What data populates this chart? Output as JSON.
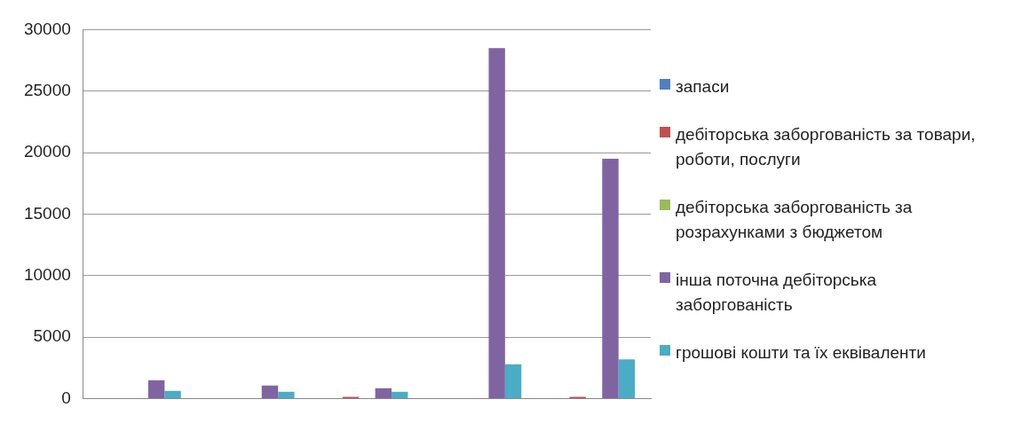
{
  "chart_data": {
    "type": "bar",
    "categories": [
      null,
      null,
      null,
      null,
      null
    ],
    "series": [
      {
        "name": "запаси",
        "color": "#4f81bd",
        "values": [
          0,
          0,
          0,
          0,
          0
        ]
      },
      {
        "name": "дебіторська заборгованість за товари, роботи, послуги",
        "color": "#c0504d",
        "values": [
          50,
          50,
          150,
          0,
          150
        ]
      },
      {
        "name": "дебіторська заборгованість за розрахунками з бюджетом",
        "color": "#9bbb59",
        "values": [
          0,
          0,
          0,
          0,
          0
        ]
      },
      {
        "name": "інша поточна дебіторська заборгованість",
        "color": "#8064a2",
        "values": [
          1500,
          1070,
          860,
          28500,
          19500
        ]
      },
      {
        "name": "грошові кошти та їх еквіваленти",
        "color": "#4bacc6",
        "values": [
          640,
          570,
          570,
          2800,
          3200
        ]
      }
    ],
    "ylim": [
      0,
      30000
    ],
    "yticks": [
      0,
      5000,
      10000,
      15000,
      20000,
      25000,
      30000
    ],
    "grid": "y",
    "legend": "right"
  }
}
